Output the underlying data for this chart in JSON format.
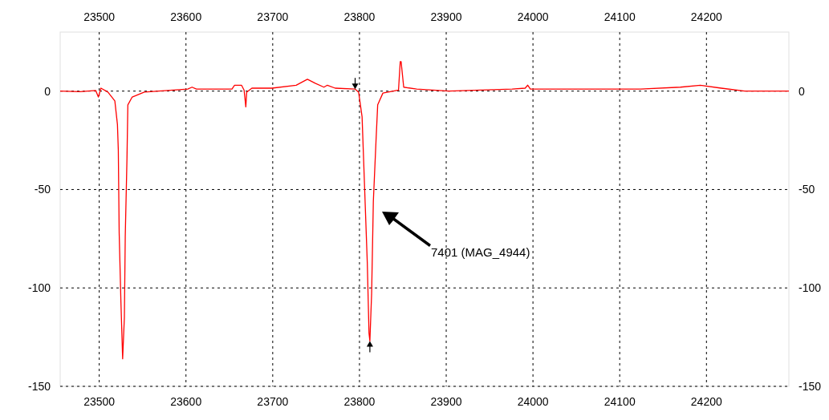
{
  "chart_data": {
    "type": "line",
    "xlim": [
      23455,
      24295
    ],
    "xticks": [
      23500,
      23600,
      23700,
      23800,
      23900,
      24000,
      24100,
      24200
    ],
    "x2lim": [
      23455,
      24295
    ],
    "x2ticks": [
      23500,
      23600,
      23700,
      23800,
      23900,
      24000,
      24100,
      24200
    ],
    "ylim": [
      -150,
      30
    ],
    "yticks": [
      -150,
      -100,
      -50,
      0
    ],
    "y2lim": [
      -150,
      30
    ],
    "y2ticks": [
      -150,
      -100,
      -50,
      0
    ],
    "grid": true,
    "line_style": "solid",
    "marker": "none",
    "series": [
      {
        "color": "#ff0000",
        "x": [
          23455,
          23478,
          23496,
          23499,
          23502,
          23510,
          23518,
          23521,
          23522,
          23523,
          23525,
          23527,
          23529,
          23530,
          23532,
          23533,
          23538,
          23552,
          23602,
          23607,
          23612,
          23653,
          23656,
          23664,
          23667,
          23669,
          23670,
          23676,
          23699,
          23727,
          23740,
          23749,
          23759,
          23763,
          23772,
          23795,
          23799,
          23803,
          23806,
          23809,
          23811,
          23812,
          23814,
          23816,
          23819,
          23821,
          23827,
          23845,
          23847,
          23848,
          23851,
          23866,
          23903,
          23976,
          23991,
          23994,
          23997,
          24069,
          24124,
          24170,
          24193,
          24217,
          24244,
          24295
        ],
        "values": [
          0,
          -0.3,
          0.3,
          -3,
          1.5,
          -0.5,
          -5,
          -17,
          -30,
          -72,
          -107,
          -136,
          -115,
          -74,
          -34,
          -7,
          -3,
          -0.5,
          1,
          2,
          1,
          1,
          3,
          3,
          0.5,
          -8,
          -0.5,
          1.5,
          1.5,
          3,
          6,
          4,
          2,
          3,
          1.5,
          1,
          -0.5,
          -13,
          -50,
          -87,
          -123,
          -127,
          -103,
          -56,
          -26,
          -7,
          -1,
          0.5,
          15,
          15,
          2,
          1,
          0,
          1,
          1.5,
          3,
          1,
          1,
          1,
          2,
          3,
          1.5,
          0,
          0
        ]
      }
    ],
    "annotations": [
      "7401 (MAG_4944)"
    ]
  }
}
